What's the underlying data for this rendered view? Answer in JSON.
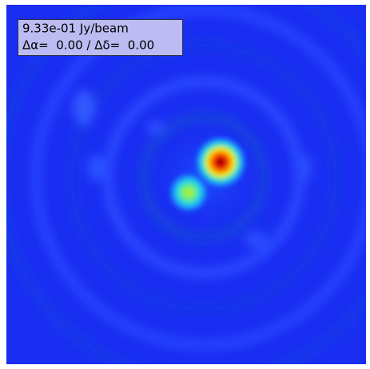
{
  "label": {
    "flux": "9.33e-01 Jy/beam",
    "offset": "Δα=  0.00 / Δδ=  0.00"
  }
}
